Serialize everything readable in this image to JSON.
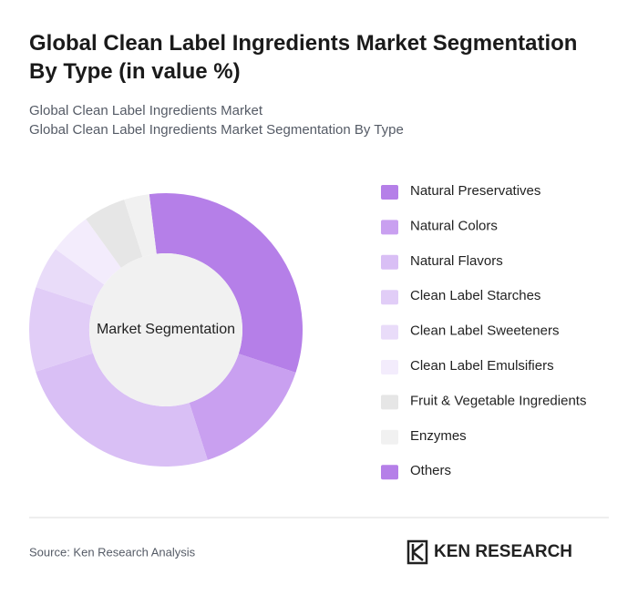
{
  "chart_data": {
    "type": "donut",
    "title": "Global Clean Label Ingredients Market Segmentation By Type (in value %)",
    "subtitle": [
      "Global Clean Label Ingredients Market",
      "Global Clean Label Ingredients Market Segmentation By Type"
    ],
    "center_label": "Market Segmentation",
    "categories": [
      "Natural Preservatives",
      "Natural Colors",
      "Natural Flavors",
      "Clean Label Starches",
      "Clean Label Sweeteners",
      "Clean Label Emulsifiers",
      "Fruit & Vegetable Ingredients",
      "Enzymes",
      "Others"
    ],
    "values": [
      32,
      15,
      25,
      10,
      5,
      5,
      5,
      3,
      0
    ],
    "colors": [
      "#b57fe8",
      "#c9a0f0",
      "#d9bff5",
      "#e1cdf7",
      "#e9dcf9",
      "#f3ecfc",
      "#e6e6e6",
      "#f1f1f1",
      "#b57fe8"
    ],
    "source": "Source: Ken Research Analysis",
    "logo": "KEN RESEARCH"
  }
}
